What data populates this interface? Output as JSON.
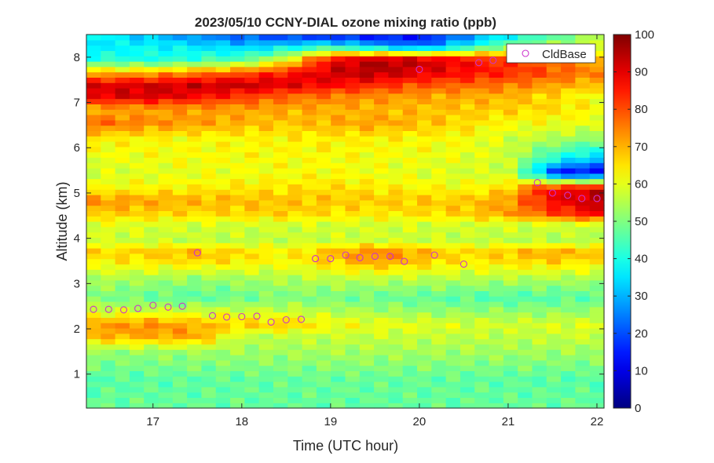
{
  "chart_data": {
    "type": "heatmap",
    "title": "2023/05/10 CCNY-DIAL ozone mixing ratio (ppb)",
    "xlabel": "Time (UTC hour)",
    "ylabel": "Altitude (km)",
    "xlim": [
      16.25,
      22.08
    ],
    "ylim": [
      0.25,
      8.5
    ],
    "xticks": [
      17,
      18,
      19,
      20,
      21,
      22
    ],
    "yticks": [
      1,
      2,
      3,
      4,
      5,
      6,
      7,
      8
    ],
    "colorbar": {
      "range": [
        0,
        100
      ],
      "ticks": [
        0,
        10,
        20,
        30,
        40,
        50,
        60,
        70,
        80,
        90,
        100
      ],
      "colormap": "jet"
    },
    "legend": {
      "entries": [
        "CldBase"
      ],
      "position": "top-right"
    },
    "marker_color": "#cc33cc",
    "layers": [
      {
        "alt": 0.25,
        "x": [
          16.25,
          19.0,
          22.08
        ],
        "v": [
          48,
          47,
          48
        ]
      },
      {
        "alt": 0.9,
        "x": [
          16.25,
          19.0,
          22.08
        ],
        "v": [
          46,
          48,
          46
        ]
      },
      {
        "alt": 1.5,
        "x": [
          16.25,
          19.0,
          22.08
        ],
        "v": [
          52,
          54,
          53
        ]
      },
      {
        "alt": 1.85,
        "x": [
          16.25,
          17.5,
          18.0,
          19.0,
          20.0,
          21.0,
          22.08
        ],
        "v": [
          70,
          72,
          56,
          57,
          57,
          56,
          58
        ]
      },
      {
        "alt": 2.1,
        "x": [
          16.25,
          17.0,
          17.5,
          18.0,
          18.5,
          19.0,
          20.0,
          21.0,
          22.08
        ],
        "v": [
          72,
          74,
          70,
          67,
          68,
          62,
          60,
          58,
          60
        ]
      },
      {
        "alt": 2.4,
        "x": [
          16.25,
          17.5,
          18.5,
          20.0,
          22.08
        ],
        "v": [
          58,
          58,
          57,
          52,
          52
        ]
      },
      {
        "alt": 2.7,
        "x": [
          16.25,
          17.5,
          18.5,
          20.0,
          21.0,
          22.08
        ],
        "v": [
          50,
          46,
          50,
          47,
          45,
          47
        ]
      },
      {
        "alt": 3.1,
        "x": [
          16.25,
          17.5,
          19.0,
          20.5,
          22.08
        ],
        "v": [
          55,
          52,
          56,
          55,
          54
        ]
      },
      {
        "alt": 3.5,
        "x": [
          16.25,
          17.5,
          18.5,
          19.5,
          20.5,
          21.5,
          22.08
        ],
        "v": [
          63,
          66,
          62,
          72,
          64,
          67,
          64
        ]
      },
      {
        "alt": 3.7,
        "x": [
          16.25,
          17.5,
          18.5,
          19.5,
          20.5,
          21.5,
          22.08
        ],
        "v": [
          66,
          70,
          63,
          76,
          66,
          72,
          68
        ]
      },
      {
        "alt": 3.95,
        "x": [
          16.25,
          18.0,
          19.5,
          21.0,
          22.08
        ],
        "v": [
          58,
          56,
          58,
          56,
          55
        ]
      },
      {
        "alt": 4.3,
        "x": [
          16.25,
          17.5,
          19.0,
          20.5,
          22.08
        ],
        "v": [
          60,
          58,
          58,
          58,
          58
        ]
      },
      {
        "alt": 4.55,
        "x": [
          16.25,
          17.5,
          18.5,
          19.5,
          20.5,
          21.0,
          22.08
        ],
        "v": [
          68,
          66,
          67,
          64,
          67,
          72,
          90
        ]
      },
      {
        "alt": 4.85,
        "x": [
          16.25,
          17.5,
          19.0,
          20.5,
          21.0,
          21.5,
          22.08
        ],
        "v": [
          74,
          70,
          68,
          68,
          72,
          88,
          95
        ]
      },
      {
        "alt": 5.1,
        "x": [
          16.25,
          17.5,
          19.0,
          20.5,
          21.0,
          21.3,
          21.6,
          22.08
        ],
        "v": [
          62,
          64,
          66,
          62,
          66,
          82,
          90,
          92
        ]
      },
      {
        "alt": 5.45,
        "x": [
          16.25,
          17.5,
          19.0,
          20.5,
          21.0,
          21.3,
          21.6,
          22.08
        ],
        "v": [
          58,
          60,
          62,
          58,
          58,
          35,
          10,
          12
        ]
      },
      {
        "alt": 5.75,
        "x": [
          16.25,
          17.5,
          19.0,
          20.5,
          21.0,
          21.5,
          22.08
        ],
        "v": [
          60,
          62,
          62,
          60,
          58,
          40,
          30
        ]
      },
      {
        "alt": 6.2,
        "x": [
          16.25,
          17.5,
          19.0,
          20.5,
          21.0,
          21.5,
          22.08
        ],
        "v": [
          64,
          62,
          64,
          62,
          58,
          55,
          50
        ]
      },
      {
        "alt": 6.55,
        "x": [
          16.25,
          17.0,
          17.5,
          18.5,
          19.5,
          20.5,
          21.0,
          22.08
        ],
        "v": [
          78,
          74,
          72,
          68,
          72,
          66,
          62,
          60
        ]
      },
      {
        "alt": 6.85,
        "x": [
          16.25,
          17.5,
          19.0,
          20.5,
          21.5,
          22.08
        ],
        "v": [
          70,
          72,
          70,
          68,
          66,
          62
        ]
      },
      {
        "alt": 7.15,
        "x": [
          16.25,
          17.0,
          17.5,
          18.5,
          19.0,
          20.0,
          21.0,
          21.5,
          22.08
        ],
        "v": [
          90,
          92,
          88,
          78,
          76,
          72,
          70,
          66,
          60
        ]
      },
      {
        "alt": 7.4,
        "x": [
          16.25,
          17.0,
          18.0,
          19.0,
          20.0,
          21.0,
          22.08
        ],
        "v": [
          90,
          92,
          94,
          88,
          80,
          76,
          68
        ]
      },
      {
        "alt": 7.65,
        "x": [
          16.25,
          17.0,
          18.0,
          19.0,
          19.5,
          20.0,
          21.0,
          22.08
        ],
        "v": [
          70,
          72,
          80,
          92,
          95,
          90,
          84,
          74
        ]
      },
      {
        "alt": 7.95,
        "x": [
          16.25,
          17.0,
          18.0,
          18.5,
          19.0,
          19.5,
          20.0,
          21.0,
          22.08
        ],
        "v": [
          42,
          40,
          46,
          60,
          88,
          96,
          94,
          82,
          70
        ]
      },
      {
        "alt": 8.25,
        "x": [
          16.25,
          17.0,
          18.0,
          18.5,
          19.0,
          19.5,
          20.0,
          21.0,
          22.08
        ],
        "v": [
          35,
          38,
          32,
          35,
          40,
          30,
          22,
          50,
          60
        ]
      },
      {
        "alt": 8.5,
        "x": [
          16.25,
          17.0,
          18.0,
          19.0,
          20.0,
          21.0,
          22.08
        ],
        "v": [
          40,
          30,
          20,
          12,
          12,
          35,
          55
        ]
      }
    ],
    "cloud_base_x": [
      16.33,
      16.5,
      16.67,
      16.83,
      17.0,
      17.17,
      17.33,
      17.5,
      17.67,
      17.83,
      18.0,
      18.17,
      18.33,
      18.5,
      18.67,
      18.83,
      19.0,
      19.17,
      19.33,
      19.5,
      19.67,
      19.83,
      20.0,
      20.17,
      20.5,
      20.67,
      20.83,
      21.33,
      21.5,
      21.67,
      21.83,
      22.0
    ],
    "cloud_base_y": [
      2.43,
      2.43,
      2.42,
      2.45,
      2.52,
      2.48,
      2.5,
      3.68,
      2.29,
      2.26,
      2.27,
      2.28,
      2.15,
      2.2,
      2.21,
      3.55,
      3.55,
      3.63,
      3.57,
      3.6,
      3.6,
      3.49,
      7.73,
      3.63,
      3.43,
      7.88,
      7.93,
      5.23,
      5.0,
      4.95,
      4.88,
      4.88
    ]
  }
}
